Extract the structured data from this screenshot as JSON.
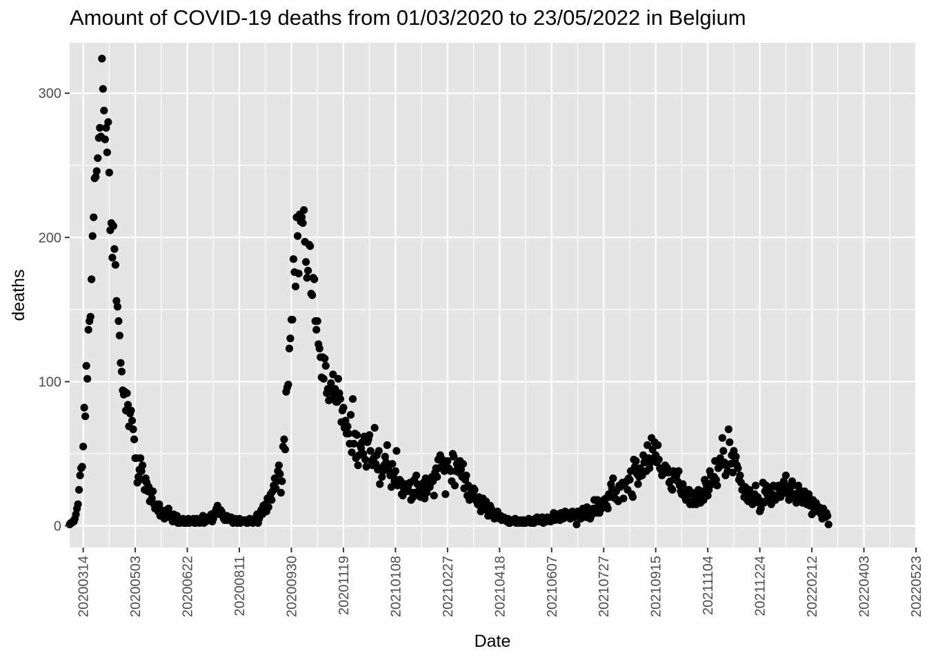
{
  "chart_data": {
    "type": "scatter",
    "title": "Amount of COVID-19 deaths from 01/03/2020 to 23/05/2022 in Belgium",
    "xlabel": "Date",
    "ylabel": "deaths",
    "xlim": [
      "20200301",
      "20220523"
    ],
    "ylim": [
      -15,
      335
    ],
    "y_ticks": [
      0,
      100,
      200,
      300
    ],
    "x_ticks": [
      "20200314",
      "20200503",
      "20200622",
      "20200811",
      "20200930",
      "20201119",
      "20210108",
      "20210227",
      "20210418",
      "20210607",
      "20210727",
      "20210915",
      "20211104",
      "20211224",
      "20220212",
      "20220403",
      "20220523"
    ],
    "grid": true,
    "legend": "none",
    "colors": {
      "panel": "#e5e5e5",
      "grid": "#ffffff",
      "point": "#000000"
    },
    "series": [
      {
        "x_start": "20200301",
        "x_step_days": 1,
        "values": [
          1,
          2,
          2,
          3,
          3,
          5,
          8,
          12,
          15,
          25,
          35,
          40,
          41,
          55,
          82,
          76,
          111,
          102,
          136,
          142,
          145,
          171,
          201,
          214,
          241,
          242,
          246,
          255,
          269,
          276,
          270,
          324,
          303,
          288,
          268,
          276,
          259,
          280,
          245,
          205,
          210,
          186,
          208,
          192,
          181,
          156,
          152,
          142,
          132,
          113,
          107,
          94,
          91,
          93,
          80,
          92,
          84,
          69,
          78,
          80,
          73,
          67,
          60,
          47,
          47,
          30,
          34,
          39,
          47,
          38,
          42,
          32,
          25,
          33,
          30,
          24,
          27,
          17,
          23,
          19,
          24,
          15,
          12,
          12,
          15,
          10,
          15,
          7,
          11,
          7,
          7,
          5,
          8,
          11,
          7,
          12,
          6,
          8,
          5,
          3,
          8,
          4,
          4,
          7,
          2,
          3,
          2,
          4,
          3,
          5,
          2,
          3,
          2,
          4,
          5,
          2,
          3,
          4,
          4,
          5,
          2,
          2,
          5,
          4,
          3,
          2,
          5,
          4,
          7,
          2,
          6,
          3,
          5,
          4,
          6,
          7,
          8,
          3,
          5,
          9,
          10,
          12,
          14,
          11,
          8,
          11,
          10,
          8,
          5,
          4,
          6,
          7,
          4,
          5,
          5,
          6,
          4,
          2,
          3,
          5,
          4,
          2,
          3,
          5,
          2,
          3,
          4,
          3,
          3,
          4,
          2,
          2,
          3,
          5,
          4,
          3,
          2,
          3,
          5,
          6,
          8,
          2,
          5,
          9,
          11,
          8,
          14,
          12,
          15,
          10,
          19,
          13,
          20,
          22,
          18,
          24,
          28,
          33,
          26,
          31,
          38,
          42,
          36,
          23,
          31,
          55,
          60,
          53,
          93,
          96,
          98,
          123,
          130,
          143,
          143,
          185,
          176,
          166,
          214,
          201,
          175,
          216,
          211,
          214,
          210,
          219,
          197,
          183,
          172,
          177,
          195,
          194,
          161,
          160,
          172,
          171,
          142,
          136,
          142,
          126,
          123,
          117,
          103,
          117,
          102,
          116,
          111,
          92,
          95,
          87,
          95,
          99,
          88,
          105,
          91,
          95,
          86,
          86,
          102,
          92,
          88,
          72,
          80,
          82,
          68,
          73,
          64,
          69,
          64,
          57,
          77,
          51,
          88,
          57,
          64,
          47,
          63,
          42,
          49,
          56,
          54,
          58,
          50,
          62,
          46,
          41,
          58,
          60,
          63,
          52,
          45,
          42,
          47,
          68,
          43,
          49,
          39,
          52,
          29,
          40,
          34,
          38,
          42,
          48,
          44,
          56,
          40,
          38,
          35,
          27,
          43,
          35,
          31,
          38,
          52,
          28,
          29,
          32,
          31,
          22,
          21,
          26,
          25,
          29,
          24,
          27,
          29,
          30,
          18,
          23,
          20,
          32,
          23,
          35,
          29,
          24,
          28,
          20,
          27,
          22,
          30,
          19,
          33,
          23,
          26,
          32,
          27,
          30,
          34,
          31,
          21,
          37,
          40,
          34,
          46,
          40,
          49,
          41,
          46,
          44,
          38,
          22,
          41,
          45,
          40,
          39,
          38,
          31,
          50,
          48,
          28,
          38,
          43,
          40,
          37,
          45,
          39,
          34,
          43,
          26,
          32,
          35,
          21,
          28,
          18,
          22,
          24,
          19,
          26,
          25,
          20,
          17,
          15,
          20,
          14,
          10,
          17,
          19,
          15,
          13,
          17,
          11,
          7,
          10,
          14,
          12,
          8,
          7,
          5,
          9,
          6,
          10,
          6,
          5,
          7,
          4,
          5,
          6,
          5,
          4,
          3,
          5,
          2,
          2,
          4,
          3,
          4,
          3,
          5,
          2,
          3,
          3,
          2,
          4,
          3,
          2,
          4,
          2,
          2,
          3,
          3,
          5,
          4,
          2,
          3,
          2,
          2,
          5,
          3,
          6,
          4,
          3,
          5,
          3,
          6,
          2,
          4,
          5,
          3,
          6,
          4,
          5,
          3,
          5,
          6,
          9,
          4,
          7,
          8,
          5,
          6,
          4,
          9,
          7,
          5,
          8,
          10,
          7,
          6,
          9,
          8,
          5,
          7,
          10,
          9,
          6,
          7,
          1,
          10,
          8,
          6,
          5,
          9,
          12,
          7,
          10,
          6,
          13,
          8,
          11,
          5,
          7,
          10,
          12,
          18,
          12,
          9,
          18,
          14,
          9,
          13,
          12,
          16,
          18,
          15,
          19,
          14,
          12,
          22,
          20,
          29,
          26,
          33,
          20,
          19,
          24,
          18,
          17,
          28,
          27,
          28,
          30,
          19,
          30,
          30,
          31,
          25,
          33,
          32,
          38,
          22,
          20,
          46,
          41,
          45,
          36,
          29,
          34,
          40,
          38,
          35,
          49,
          44,
          47,
          38,
          56,
          47,
          40,
          44,
          61,
          53,
          47,
          58,
          49,
          44,
          56,
          46,
          40,
          39,
          35,
          36,
          39,
          42,
          41,
          40,
          37,
          30,
          31,
          26,
          25,
          38,
          35,
          37,
          35,
          31,
          38,
          28,
          24,
          22,
          29,
          23,
          20,
          18,
          25,
          22,
          25,
          15,
          17,
          23,
          15,
          21,
          18,
          15,
          19,
          25,
          18,
          16,
          22,
          24,
          18,
          32,
          30,
          28,
          21,
          25,
          38,
          35,
          30,
          29,
          34,
          45,
          32,
          28,
          40,
          45,
          47,
          42,
          61,
          52,
          44,
          35,
          42,
          38,
          67,
          58,
          43,
          49,
          37,
          52,
          45,
          48,
          42,
          40,
          32,
          35,
          30,
          25,
          25,
          20,
          27,
          23,
          18,
          17,
          25,
          21,
          20,
          15,
          17,
          22,
          28,
          18,
          20,
          16,
          10,
          12,
          17,
          30,
          16,
          24,
          28,
          22,
          19,
          22,
          26,
          15,
          22,
          28,
          21,
          18,
          27,
          21,
          28,
          25,
          20,
          26,
          23,
          31,
          28,
          35,
          25,
          22,
          18,
          28,
          23,
          31,
          28,
          20,
          22,
          16,
          18,
          28,
          25,
          22,
          20,
          16,
          18,
          24,
          20,
          15,
          18,
          22,
          14,
          16,
          8,
          18,
          12,
          10,
          16,
          13,
          10,
          13,
          9,
          8,
          5,
          12,
          10,
          6,
          9,
          7,
          1
        ]
      }
    ]
  }
}
